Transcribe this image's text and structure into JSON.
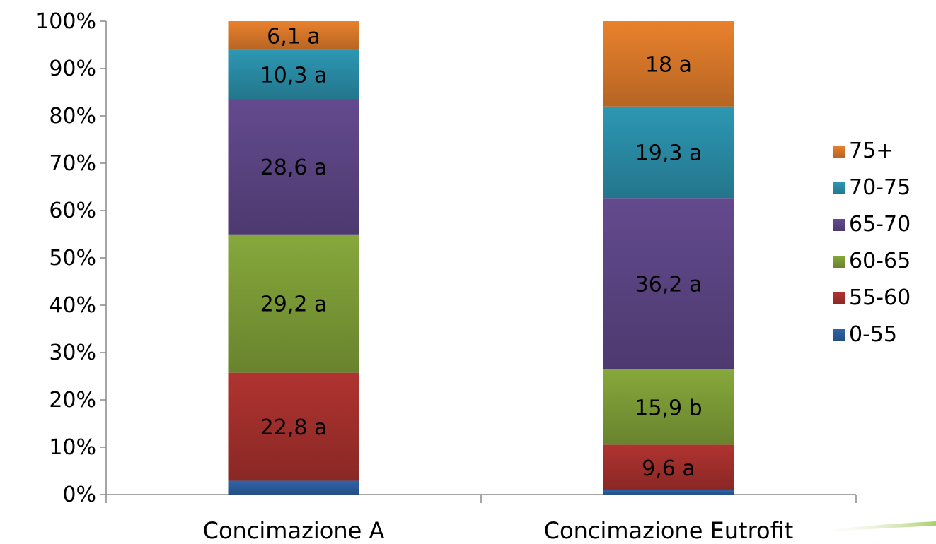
{
  "chart_data": {
    "type": "bar",
    "stacked": true,
    "percent_stacked": true,
    "categories": [
      "Concimazione A",
      "Concimazione Eutrofit"
    ],
    "series": [
      {
        "name": "0-55",
        "color": "#2f64a8",
        "values": [
          2.9,
          0.9
        ],
        "labels": [
          "",
          ""
        ]
      },
      {
        "name": "55-60",
        "color": "#b03330",
        "values": [
          22.8,
          9.6
        ],
        "labels": [
          "22,8 a",
          "9,6 a"
        ]
      },
      {
        "name": "60-65",
        "color": "#86a83b",
        "values": [
          29.2,
          15.9
        ],
        "labels": [
          "29,2 a",
          "15,9 b"
        ]
      },
      {
        "name": "65-70",
        "color": "#634a8e",
        "values": [
          28.6,
          36.2
        ],
        "labels": [
          "28,6 a",
          "36,2 a"
        ]
      },
      {
        "name": "70-75",
        "color": "#2d97b3",
        "values": [
          10.3,
          19.3
        ],
        "labels": [
          "10,3 a",
          "19,3 a"
        ]
      },
      {
        "name": "75+",
        "color": "#e9812d",
        "values": [
          6.1,
          18
        ],
        "labels": [
          "6,1 a",
          "18 a"
        ]
      }
    ],
    "y_ticks": [
      "0%",
      "10%",
      "20%",
      "30%",
      "40%",
      "50%",
      "60%",
      "70%",
      "80%",
      "90%",
      "100%"
    ],
    "ylim": [
      0,
      100
    ],
    "title": "",
    "xlabel": "",
    "ylabel": "",
    "grid": false,
    "legend_position": "right"
  }
}
